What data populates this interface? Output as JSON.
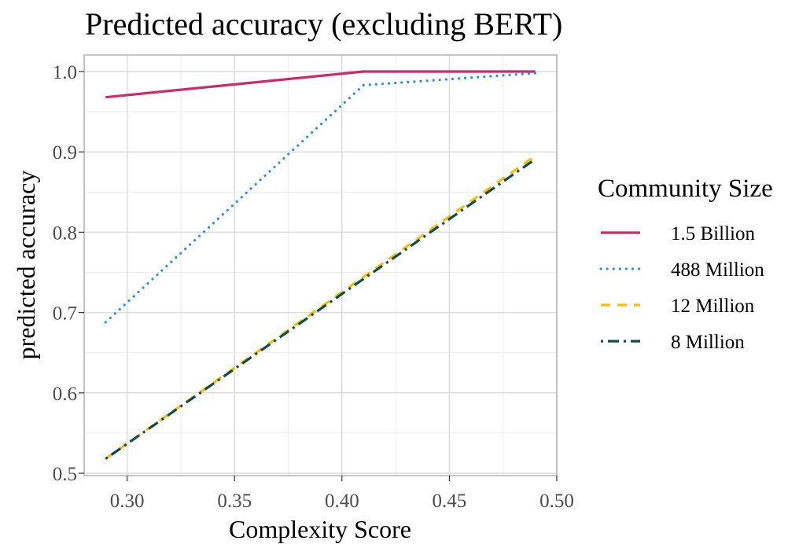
{
  "chart_data": {
    "type": "line",
    "title": "Predicted accuracy (excluding BERT)",
    "xlabel": "Complexity Score",
    "ylabel": "predicted accuracy",
    "xlim": [
      0.28,
      0.5
    ],
    "ylim": [
      0.5,
      1.0
    ],
    "xticks": [
      0.3,
      0.35,
      0.4,
      0.45,
      0.5
    ],
    "xtick_labels": [
      "0.30",
      "0.35",
      "0.40",
      "0.45",
      "0.50"
    ],
    "yticks": [
      0.5,
      0.6,
      0.7,
      0.8,
      0.9,
      1.0
    ],
    "ytick_labels": [
      "0.5",
      "0.6",
      "0.7",
      "0.8",
      "0.9",
      "1.0"
    ],
    "grid": true,
    "legend": {
      "title": "Community Size",
      "placement": "right"
    },
    "series": [
      {
        "name": "1.5 Billion",
        "color": "#d1286a",
        "dash": "solid",
        "x": [
          0.29,
          0.41,
          0.49
        ],
        "y": [
          0.968,
          1.0,
          1.0
        ]
      },
      {
        "name": "488 Million",
        "color": "#2f8fe0",
        "dash": "dotted",
        "x": [
          0.29,
          0.41,
          0.49
        ],
        "y": [
          0.688,
          0.983,
          0.998
        ]
      },
      {
        "name": "12 Million",
        "color": "#f5bd0a",
        "dash": "dashed",
        "x": [
          0.29,
          0.49
        ],
        "y": [
          0.518,
          0.895
        ]
      },
      {
        "name": "8 Million",
        "color": "#0f4e44",
        "dash": "dotdash",
        "x": [
          0.29,
          0.49
        ],
        "y": [
          0.518,
          0.891
        ]
      }
    ]
  }
}
